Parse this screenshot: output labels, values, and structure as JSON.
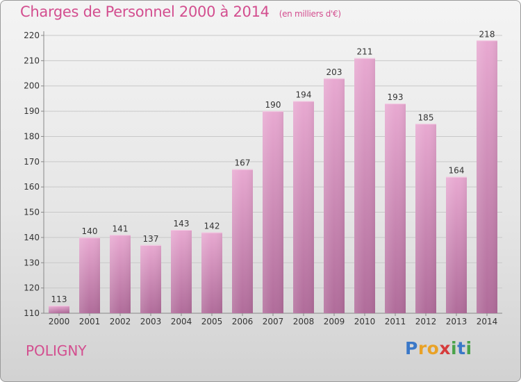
{
  "title": "Charges de Personnel 2000 à 2014",
  "subtitle": "(en milliers d'€)",
  "commune": "POLIGNY",
  "logo": {
    "letters": [
      "P",
      "r",
      "o",
      "x",
      "i",
      "t",
      "i"
    ],
    "colors": [
      "#3a78c8",
      "#e9a227",
      "#e9a227",
      "#d63c3c",
      "#4aa34a",
      "#3a78c8",
      "#4aa34a"
    ]
  },
  "colors": {
    "accent": "#d34e8f",
    "bar_top": "#e8a9d1",
    "bar_bottom": "#b06c9a",
    "grid": "#c8c8c8"
  },
  "chart_data": {
    "type": "bar",
    "categories": [
      "2000",
      "2001",
      "2002",
      "2003",
      "2004",
      "2005",
      "2006",
      "2007",
      "2008",
      "2009",
      "2010",
      "2011",
      "2012",
      "2013",
      "2014"
    ],
    "values": [
      113,
      140,
      141,
      137,
      143,
      142,
      167,
      190,
      194,
      203,
      211,
      193,
      185,
      164,
      218
    ],
    "title": "Charges de Personnel 2000 à 2014",
    "subtitle": "(en milliers d'€)",
    "xlabel": "",
    "ylabel": "",
    "ylim": [
      110,
      220
    ],
    "yticks": [
      110,
      120,
      130,
      140,
      150,
      160,
      170,
      180,
      190,
      200,
      210,
      220
    ],
    "grid": true,
    "data_labels": true
  }
}
